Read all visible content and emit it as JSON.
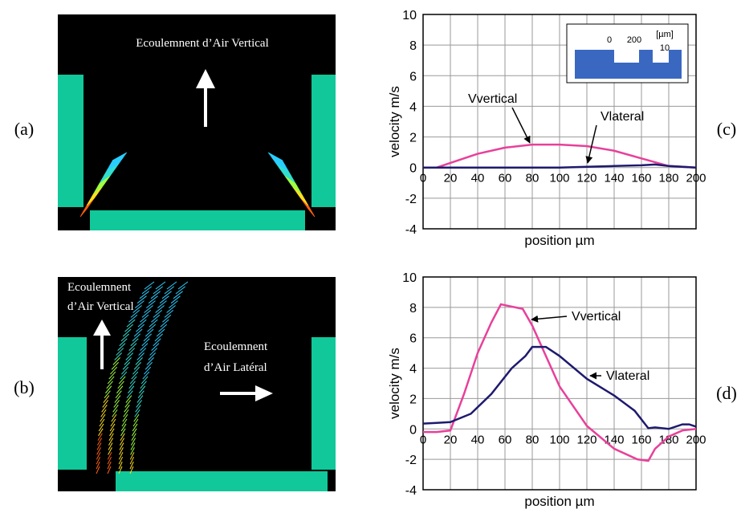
{
  "figures": {
    "a": {
      "label": "(a)",
      "text": "Ecoulemnent d’Air Vertical"
    },
    "b": {
      "label": "(b)",
      "text_vertical": [
        "Ecoulemnent",
        "d’Air Vertical"
      ],
      "text_lateral": [
        "Ecoulemnent",
        "d’Air Latéral"
      ]
    }
  },
  "chart_data": [
    {
      "type": "line",
      "label": "(c)",
      "xlabel": "position  µm",
      "ylabel": "velocity  m/s",
      "xlim": [
        0,
        200
      ],
      "ylim": [
        -4,
        10
      ],
      "xticks": [
        0,
        20,
        40,
        60,
        80,
        100,
        120,
        140,
        160,
        180,
        200
      ],
      "yticks": [
        -4,
        -2,
        0,
        2,
        4,
        6,
        8,
        10
      ],
      "grid": true,
      "series": [
        {
          "name": "Vvertical",
          "color": "#e8409a",
          "x": [
            0,
            10,
            20,
            40,
            60,
            80,
            100,
            120,
            140,
            160,
            180,
            200
          ],
          "values": [
            0,
            0,
            0.3,
            0.9,
            1.3,
            1.5,
            1.5,
            1.4,
            1.1,
            0.6,
            0.1,
            0
          ]
        },
        {
          "name": "Vlateral",
          "color": "#1e1a6e",
          "x": [
            0,
            20,
            40,
            60,
            80,
            100,
            120,
            140,
            160,
            170,
            180,
            200
          ],
          "values": [
            0,
            0,
            0,
            0,
            0,
            0,
            0.05,
            0.1,
            0.15,
            0.2,
            0.1,
            0
          ]
        }
      ],
      "inset": {
        "labels": [
          "0",
          "200",
          "[µm]",
          "10"
        ]
      }
    },
    {
      "type": "line",
      "label": "(d)",
      "xlabel": "position  µm",
      "ylabel": "velocity  m/s",
      "xlim": [
        0,
        200
      ],
      "ylim": [
        -4,
        10
      ],
      "xticks": [
        0,
        20,
        40,
        60,
        80,
        100,
        120,
        140,
        160,
        180,
        200
      ],
      "yticks": [
        -4,
        -2,
        0,
        2,
        4,
        6,
        8,
        10
      ],
      "grid": true,
      "series": [
        {
          "name": "Vvertical",
          "color": "#e8409a",
          "x": [
            0,
            10,
            20,
            30,
            40,
            50,
            57,
            73,
            80,
            100,
            120,
            140,
            157,
            165,
            170,
            180,
            190,
            200
          ],
          "values": [
            -0.2,
            -0.2,
            -0.1,
            2.3,
            5,
            7,
            8.2,
            7.9,
            6.8,
            2.8,
            0.2,
            -1.3,
            -2,
            -2.1,
            -1.3,
            -0.5,
            -0.1,
            0
          ]
        },
        {
          "name": "Vlateral",
          "color": "#1e1a6e",
          "x": [
            0,
            10,
            20,
            35,
            50,
            65,
            75,
            80,
            90,
            100,
            120,
            140,
            155,
            165,
            170,
            180,
            190,
            195,
            200
          ],
          "values": [
            0.35,
            0.4,
            0.45,
            1,
            2.3,
            4,
            4.8,
            5.4,
            5.4,
            4.8,
            3.3,
            2.2,
            1.2,
            0.05,
            0.1,
            0,
            0.3,
            0.3,
            0.15
          ]
        }
      ]
    }
  ]
}
